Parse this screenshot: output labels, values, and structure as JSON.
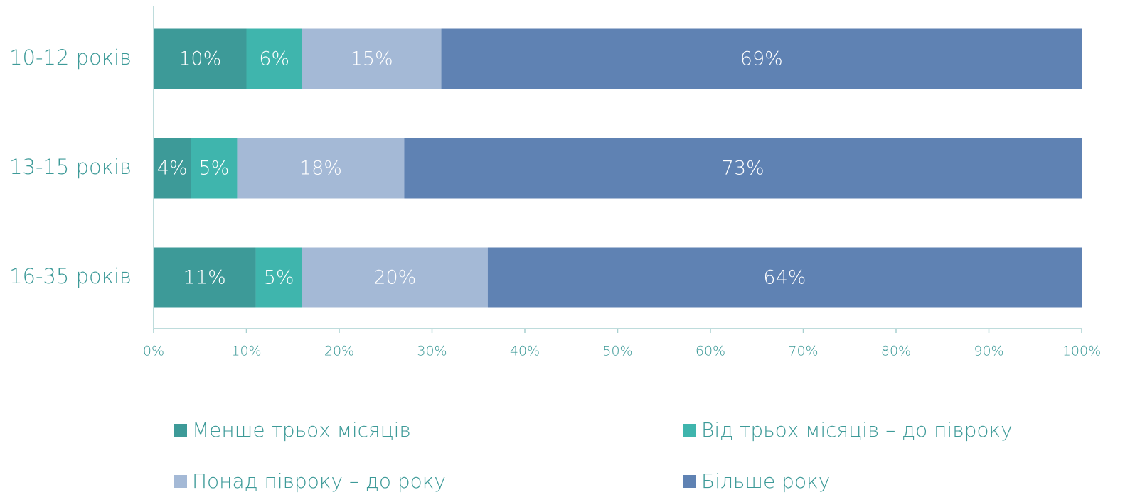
{
  "chart_data": {
    "type": "stacked-hbar",
    "categories": [
      "10-12 років",
      "13-15 років",
      "16-35 років"
    ],
    "series": [
      {
        "name": "Менше трьох місяців",
        "color": "#3d9a98",
        "values": [
          10,
          4,
          11
        ],
        "value_labels": [
          "10%",
          "4%",
          "11%"
        ]
      },
      {
        "name": "Від трьох місяців – до півроку",
        "color": "#3fb5ad",
        "values": [
          6,
          5,
          5
        ],
        "value_labels": [
          "6%",
          "5%",
          "5%"
        ]
      },
      {
        "name": "Понад півроку – до року",
        "color": "#a4b9d6",
        "values": [
          15,
          18,
          20
        ],
        "value_labels": [
          "15%",
          "18%",
          "20%"
        ]
      },
      {
        "name": "Більше року",
        "color": "#5f82b3",
        "values": [
          69,
          73,
          64
        ],
        "value_labels": [
          "69%",
          "73%",
          "64%"
        ]
      }
    ],
    "xlim": [
      0,
      100
    ],
    "xticks": [
      {
        "value": 0,
        "label": "0%"
      },
      {
        "value": 10,
        "label": "10%"
      },
      {
        "value": 20,
        "label": "20%"
      },
      {
        "value": 30,
        "label": "30%"
      },
      {
        "value": 40,
        "label": "40%"
      },
      {
        "value": 50,
        "label": "50%"
      },
      {
        "value": 60,
        "label": "60%"
      },
      {
        "value": 70,
        "label": "70%"
      },
      {
        "value": 80,
        "label": "80%"
      },
      {
        "value": 90,
        "label": "90%"
      },
      {
        "value": 100,
        "label": "100%"
      }
    ]
  }
}
